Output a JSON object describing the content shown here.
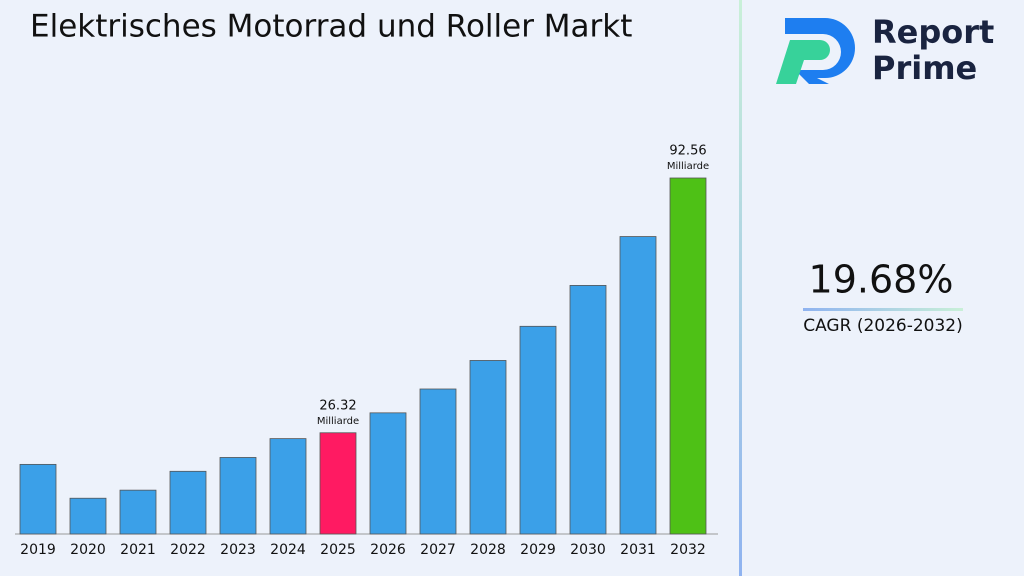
{
  "chart_data": {
    "type": "bar",
    "title": "Elektrisches Motorrad und Roller Markt",
    "categories": [
      "2019",
      "2020",
      "2021",
      "2022",
      "2023",
      "2024",
      "2025",
      "2026",
      "2027",
      "2028",
      "2029",
      "2030",
      "2031",
      "2032"
    ],
    "values": [
      18.1,
      9.3,
      11.4,
      16.3,
      19.9,
      24.8,
      26.32,
      31.5,
      37.7,
      45.12,
      54.0,
      64.63,
      77.34,
      92.56
    ],
    "colors": [
      "#3ba0e8",
      "#3ba0e8",
      "#3ba0e8",
      "#3ba0e8",
      "#3ba0e8",
      "#3ba0e8",
      "#ff1a62",
      "#3ba0e8",
      "#3ba0e8",
      "#3ba0e8",
      "#3ba0e8",
      "#3ba0e8",
      "#3ba0e8",
      "#4ec116"
    ],
    "labeled_categories": [
      "2025",
      "2032"
    ],
    "value_unit": "Milliarde"
  },
  "cagr": {
    "value": "19.68%",
    "label": "CAGR (2026-2032)"
  },
  "brand": {
    "line1": "Report",
    "line2": "Prime"
  }
}
